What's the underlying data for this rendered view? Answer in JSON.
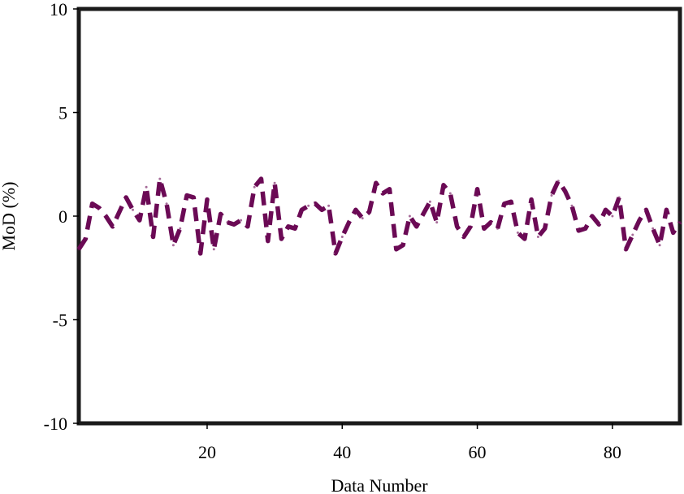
{
  "chart_data": {
    "type": "line",
    "title": "",
    "xlabel": "Data Number",
    "ylabel": "MoD (%)",
    "xlim": [
      1,
      90
    ],
    "ylim": [
      -10,
      10
    ],
    "xticks": [
      20,
      40,
      60,
      80
    ],
    "yticks": [
      -10,
      -5,
      0,
      5,
      10
    ],
    "grid": false,
    "legend": "none",
    "colors": {
      "series": "#6b0a55",
      "frame": "#1a1a1a",
      "axis": "#000000"
    },
    "series": [
      {
        "style": "dashed",
        "x": [
          1,
          2,
          3,
          4,
          5,
          6,
          7,
          8,
          9,
          10,
          11,
          12,
          13,
          14,
          15,
          16,
          17,
          18,
          19,
          20,
          21,
          22,
          23,
          24,
          25,
          26,
          27,
          28,
          29,
          30,
          31,
          32,
          33,
          34,
          35,
          36,
          37,
          38,
          39,
          40,
          41,
          42,
          43,
          44,
          45,
          46,
          47,
          48,
          49,
          50,
          51,
          52,
          53,
          54,
          55,
          56,
          57,
          58,
          59,
          60,
          61,
          62,
          63,
          64,
          65,
          66,
          67,
          68,
          69,
          70,
          71,
          72,
          73,
          74,
          75,
          76,
          77,
          78,
          79,
          80,
          81,
          82,
          83,
          84,
          85,
          86,
          87,
          88,
          89,
          90
        ],
        "y": [
          -1.6,
          -1.1,
          0.6,
          0.4,
          0.0,
          -0.5,
          0.2,
          0.9,
          0.3,
          -0.2,
          1.4,
          -1.0,
          1.8,
          0.6,
          -1.4,
          -0.6,
          1.0,
          0.9,
          -1.8,
          0.8,
          -1.6,
          0.1,
          -0.3,
          -0.4,
          -0.2,
          -0.5,
          1.4,
          1.8,
          -1.2,
          1.6,
          -1.1,
          -0.5,
          -0.6,
          0.3,
          0.5,
          0.6,
          0.3,
          0.5,
          -1.8,
          -1.0,
          -0.3,
          0.3,
          -0.1,
          0.2,
          1.6,
          1.1,
          1.3,
          -1.6,
          -1.4,
          0.0,
          -0.5,
          0.1,
          0.7,
          -0.3,
          1.5,
          1.1,
          -0.5,
          -1.0,
          -0.5,
          1.3,
          -0.6,
          -0.3,
          -0.6,
          0.6,
          0.7,
          -0.8,
          -1.1,
          0.8,
          -1.0,
          -0.6,
          1.0,
          1.7,
          1.2,
          0.5,
          -0.7,
          -0.6,
          0.0,
          -0.4,
          0.3,
          0.0,
          0.9,
          -1.6,
          -0.9,
          -0.2,
          0.3,
          -0.6,
          -1.4,
          0.3,
          -0.8,
          -0.3
        ]
      }
    ]
  }
}
